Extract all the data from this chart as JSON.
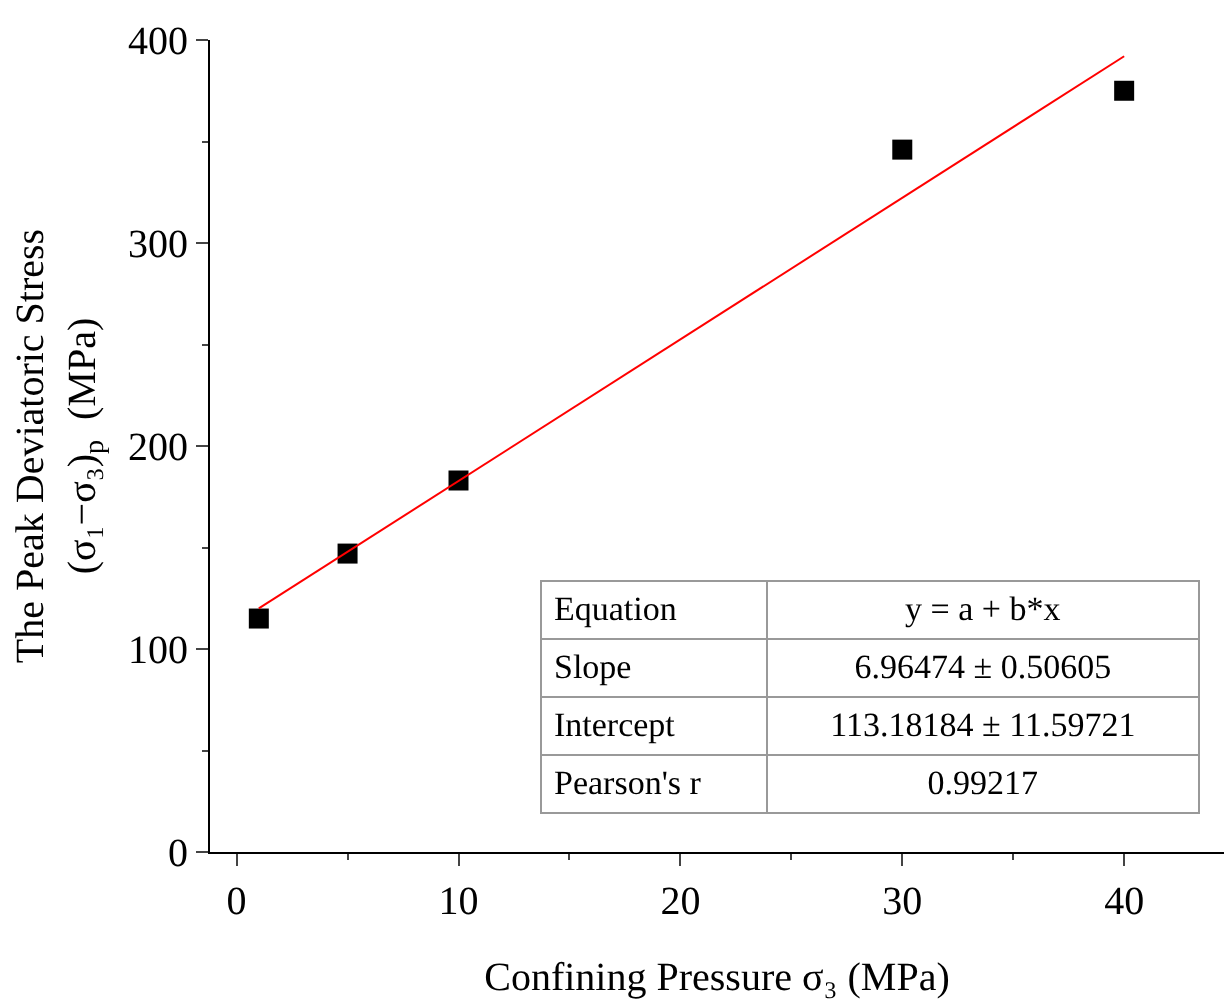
{
  "chart_data": {
    "type": "scatter",
    "xlabel": "Confining Pressure σ₃ (MPa)",
    "ylabel": "The Peak Deviatoric Stress\n(σ₁−σ₃)$_{p}$  (MPa)",
    "x": [
      1,
      5,
      10,
      30,
      40
    ],
    "series": [
      {
        "color": "#000000",
        "values": [
          115,
          147,
          183,
          346,
          375
        ],
        "marker": "square"
      },
      {
        "type": "line",
        "color": "#ff0000",
        "x": [
          1,
          40
        ],
        "values": [
          120,
          392
        ],
        "line_style": "solid",
        "marker": "none"
      }
    ],
    "xlim": [
      -1.2,
      44.5
    ],
    "xticks": [
      0,
      10,
      20,
      30,
      40
    ],
    "ylim": [
      0,
      400
    ],
    "yticks": [
      0,
      100,
      200,
      300,
      400
    ],
    "grid": false,
    "annotations": [
      "Equation",
      "y = a + b*x",
      "Slope",
      "6.96474 ± 0.50605",
      "Intercept",
      "113.18184 ± 11.59721",
      "Pearson's r",
      "0.99217"
    ]
  }
}
